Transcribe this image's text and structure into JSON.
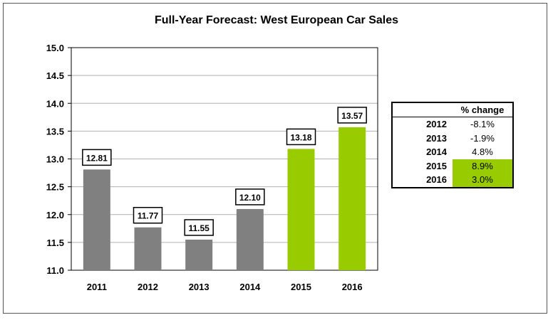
{
  "chart_data": {
    "type": "bar",
    "title": "Full-Year Forecast: West European Car Sales",
    "xlabel": "",
    "ylabel": "",
    "categories": [
      "2011",
      "2012",
      "2013",
      "2014",
      "2015",
      "2016"
    ],
    "values": [
      12.81,
      11.77,
      11.55,
      12.1,
      13.18,
      13.57
    ],
    "value_labels": [
      "12.81",
      "11.77",
      "11.55",
      "12.10",
      "13.18",
      "13.57"
    ],
    "bar_colors": [
      "#808080",
      "#808080",
      "#808080",
      "#808080",
      "#99cc00",
      "#99cc00"
    ],
    "ylim": [
      11.0,
      15.0
    ],
    "yticks": [
      "11.0",
      "11.5",
      "12.0",
      "12.5",
      "13.0",
      "13.5",
      "14.0",
      "14.5",
      "15.0"
    ],
    "grid": true,
    "legend": "none"
  },
  "change_table": {
    "header": "% change",
    "rows": [
      {
        "year": "2012",
        "value": "-8.1%",
        "highlight": false
      },
      {
        "year": "2013",
        "value": "-1.9%",
        "highlight": false
      },
      {
        "year": "2014",
        "value": "4.8%",
        "highlight": false
      },
      {
        "year": "2015",
        "value": "8.9%",
        "highlight": true
      },
      {
        "year": "2016",
        "value": "3.0%",
        "highlight": true
      }
    ],
    "highlight_color": "#99cc00"
  }
}
